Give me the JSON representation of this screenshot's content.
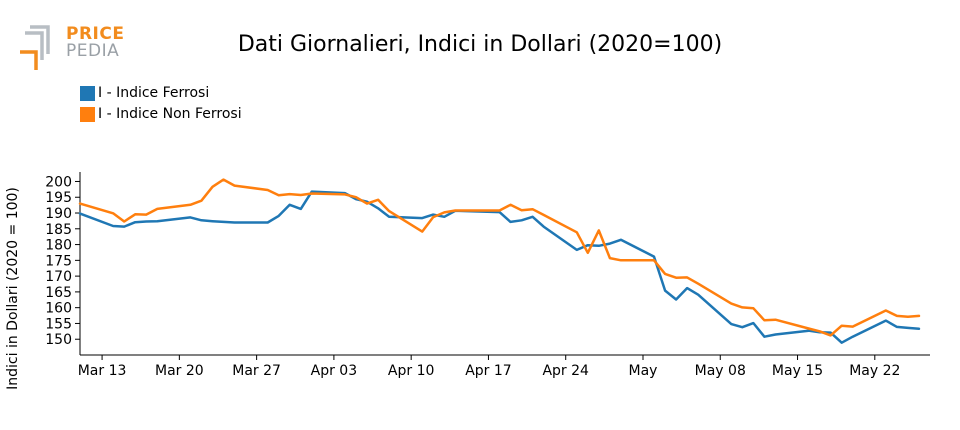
{
  "logo": {
    "line1": "PRICE",
    "line2": "PEDIA"
  },
  "title": "Dati Giornalieri, Indici in Dollari (2020=100)",
  "colors": {
    "ferrosi": "#1f77b4",
    "non_ferrosi": "#ff7f0e"
  },
  "chart_data": {
    "type": "line",
    "title": "Dati Giornalieri, Indici in Dollari (2020=100)",
    "xlabel": "",
    "ylabel": "Indici in Dollari (2020 = 100)",
    "ylim": [
      145,
      203
    ],
    "yticks": [
      150,
      155,
      160,
      165,
      170,
      175,
      180,
      185,
      190,
      195,
      200
    ],
    "xlim": [
      "2023-03-11",
      "2023-05-27"
    ],
    "xticks": [
      {
        "date": "2023-03-13",
        "label": "Mar 13"
      },
      {
        "date": "2023-03-20",
        "label": "Mar 20"
      },
      {
        "date": "2023-03-27",
        "label": "Mar 27"
      },
      {
        "date": "2023-04-03",
        "label": "Apr 03"
      },
      {
        "date": "2023-04-10",
        "label": "Apr 10"
      },
      {
        "date": "2023-04-17",
        "label": "Apr 17"
      },
      {
        "date": "2023-04-24",
        "label": "Apr 24"
      },
      {
        "date": "2023-05-01",
        "label": "May"
      },
      {
        "date": "2023-05-08",
        "label": "May 08"
      },
      {
        "date": "2023-05-15",
        "label": "May 15"
      },
      {
        "date": "2023-05-22",
        "label": "May 22"
      }
    ],
    "grid": false,
    "legend": "top-left",
    "series": [
      {
        "name": "I - Indice Ferrosi",
        "color": "#1f77b4",
        "x": [
          "2023-03-11",
          "2023-03-14",
          "2023-03-15",
          "2023-03-16",
          "2023-03-17",
          "2023-03-18",
          "2023-03-21",
          "2023-03-22",
          "2023-03-23",
          "2023-03-24",
          "2023-03-25",
          "2023-03-28",
          "2023-03-29",
          "2023-03-30",
          "2023-03-31",
          "2023-04-01",
          "2023-04-04",
          "2023-04-05",
          "2023-04-06",
          "2023-04-07",
          "2023-04-08",
          "2023-04-11",
          "2023-04-12",
          "2023-04-13",
          "2023-04-14",
          "2023-04-15",
          "2023-04-18",
          "2023-04-19",
          "2023-04-20",
          "2023-04-21",
          "2023-04-22",
          "2023-04-25",
          "2023-04-26",
          "2023-04-27",
          "2023-04-28",
          "2023-04-29",
          "2023-05-02",
          "2023-05-03",
          "2023-05-04",
          "2023-05-05",
          "2023-05-06",
          "2023-05-09",
          "2023-05-10",
          "2023-05-11",
          "2023-05-12",
          "2023-05-13",
          "2023-05-16",
          "2023-05-17",
          "2023-05-18",
          "2023-05-19",
          "2023-05-20",
          "2023-05-23",
          "2023-05-24",
          "2023-05-25",
          "2023-05-26"
        ],
        "values": [
          189.8,
          185.9,
          185.7,
          187.1,
          187.3,
          187.4,
          188.6,
          187.7,
          187.4,
          187.2,
          187.0,
          187.0,
          189.1,
          192.6,
          191.3,
          196.8,
          196.3,
          194.4,
          193.6,
          191.5,
          188.8,
          188.4,
          189.5,
          188.8,
          190.7,
          190.6,
          190.3,
          187.2,
          187.7,
          188.8,
          185.7,
          178.3,
          179.8,
          179.6,
          180.3,
          181.5,
          176.2,
          165.4,
          162.6,
          166.2,
          164.1,
          154.8,
          153.8,
          155.1,
          150.8,
          151.5,
          152.7,
          152.2,
          152.1,
          148.9,
          150.8,
          155.9,
          153.9,
          153.6,
          153.3
        ]
      },
      {
        "name": "I - Indice Non Ferrosi",
        "color": "#ff7f0e",
        "x": [
          "2023-03-11",
          "2023-03-14",
          "2023-03-15",
          "2023-03-16",
          "2023-03-17",
          "2023-03-18",
          "2023-03-21",
          "2023-03-22",
          "2023-03-23",
          "2023-03-24",
          "2023-03-25",
          "2023-03-28",
          "2023-03-29",
          "2023-03-30",
          "2023-03-31",
          "2023-04-01",
          "2023-04-04",
          "2023-04-05",
          "2023-04-06",
          "2023-04-07",
          "2023-04-08",
          "2023-04-11",
          "2023-04-12",
          "2023-04-13",
          "2023-04-14",
          "2023-04-15",
          "2023-04-18",
          "2023-04-19",
          "2023-04-20",
          "2023-04-21",
          "2023-04-22",
          "2023-04-25",
          "2023-04-26",
          "2023-04-27",
          "2023-04-28",
          "2023-04-29",
          "2023-05-02",
          "2023-05-03",
          "2023-05-04",
          "2023-05-05",
          "2023-05-06",
          "2023-05-09",
          "2023-05-10",
          "2023-05-11",
          "2023-05-12",
          "2023-05-13",
          "2023-05-16",
          "2023-05-17",
          "2023-05-18",
          "2023-05-19",
          "2023-05-20",
          "2023-05-23",
          "2023-05-24",
          "2023-05-25",
          "2023-05-26"
        ],
        "values": [
          193.0,
          189.9,
          187.3,
          189.6,
          189.5,
          191.3,
          192.6,
          193.9,
          198.3,
          200.6,
          198.7,
          197.3,
          195.6,
          196.0,
          195.7,
          196.2,
          195.9,
          195.0,
          193.0,
          194.2,
          190.6,
          184.1,
          188.7,
          190.2,
          190.8,
          190.8,
          190.8,
          192.6,
          190.9,
          191.2,
          189.4,
          183.9,
          177.4,
          184.5,
          175.7,
          175.0,
          175.0,
          170.7,
          169.5,
          169.6,
          167.6,
          161.3,
          160.1,
          159.8,
          156.0,
          156.2,
          153.4,
          152.5,
          151.2,
          154.3,
          154.0,
          159.1,
          157.4,
          157.1,
          157.4
        ]
      }
    ]
  }
}
